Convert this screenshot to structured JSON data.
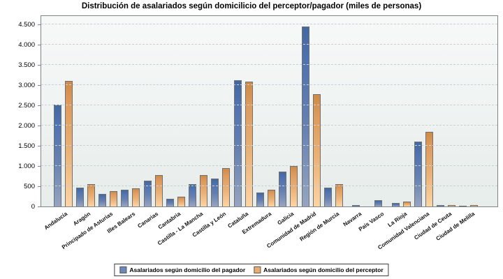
{
  "colors": {
    "bar_blue_top": "#43679f",
    "bar_blue_bottom": "#96a4c1",
    "bar_orange_top": "#cf8a48",
    "bar_orange_bottom": "#fdd4a4",
    "legend_blue": "#6d87bb",
    "legend_orange": "#e9ad72",
    "plot_background": "#eef2f1",
    "gridline": "#c9d1d5"
  },
  "chart_data": {
    "type": "bar",
    "title": "Distribución de asalariados según domicilicio del perceptor/pagador (miles de personas)",
    "xlabel": "",
    "ylabel": "",
    "ylim": [
      0,
      4500
    ],
    "ytick_interval": 500,
    "ytick_labels": [
      "0",
      "500",
      "1.000",
      "1.500",
      "2.000",
      "2.500",
      "3.000",
      "3.500",
      "4.000",
      "4.500"
    ],
    "grid": "horizontal-dashed",
    "legend_position": "bottom",
    "categories": [
      "Andalucía",
      "Aragón",
      "Principado de Asturias",
      "Illes Balears",
      "Canarias",
      "Cantabria",
      "Castilla - La Mancha",
      "Castilla y León",
      "Cataluña",
      "Extremadura",
      "Galicia",
      "Comunidad de Madrid",
      "Región de Murcia",
      "Navarra",
      "País Vasco",
      "La Rioja",
      "Comunidad Valenciana",
      "Ciudad de Ceuta",
      "Ciudad de Melilla"
    ],
    "series": [
      {
        "name": "Asalariados según domicilio del pagador",
        "color_key": "blue",
        "values": [
          2520,
          460,
          310,
          420,
          640,
          190,
          550,
          690,
          3120,
          340,
          860,
          4450,
          460,
          40,
          155,
          90,
          1600,
          35,
          15
        ]
      },
      {
        "name": "Asalariados según domicilio del perceptor",
        "color_key": "orange",
        "values": [
          3110,
          550,
          380,
          450,
          780,
          235,
          780,
          950,
          3085,
          410,
          1000,
          2770,
          550,
          0,
          0,
          120,
          1840,
          30,
          30
        ]
      }
    ]
  }
}
